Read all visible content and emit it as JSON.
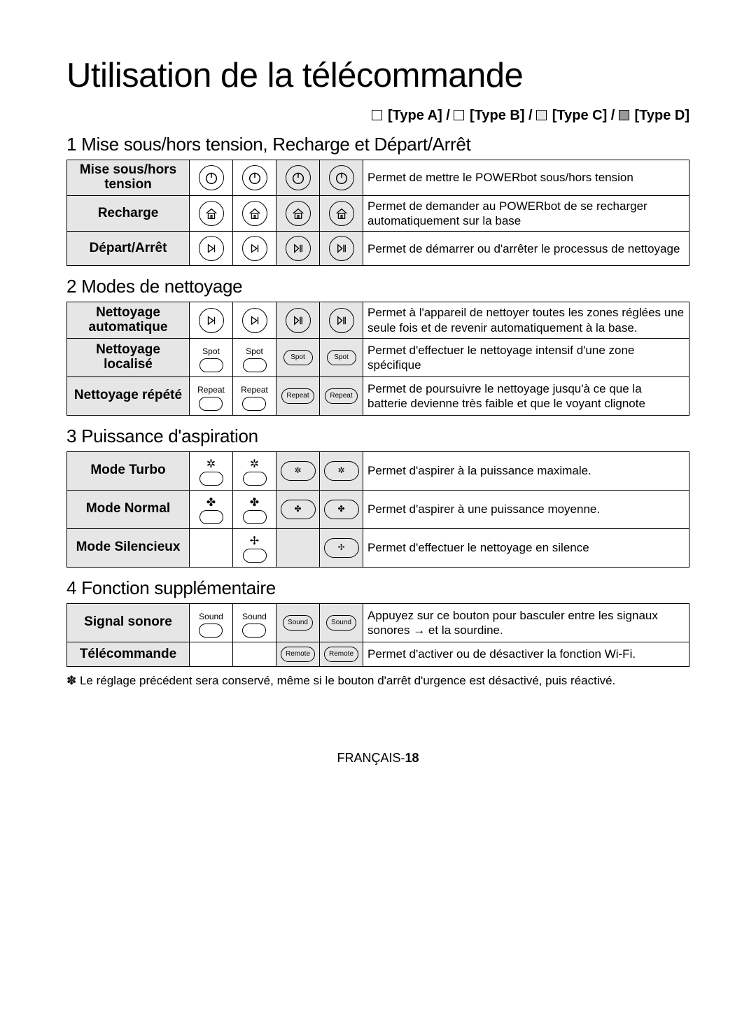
{
  "title": "Utilisation de la télécommande",
  "types": [
    "[Type A]",
    "[Type B]",
    "[Type C]",
    "[Type D]"
  ],
  "type_shades": [
    "white",
    "white",
    "light",
    "dark"
  ],
  "sections": [
    {
      "heading": "1 Mise sous/hors tension, Recharge et Départ/Arrêt",
      "rows": [
        {
          "label": "Mise sous/hors tension",
          "icons": [
            "power",
            "power",
            "power",
            "power"
          ],
          "shade": [
            false,
            false,
            true,
            true
          ],
          "desc": "Permet de mettre le POWERbot sous/hors tension"
        },
        {
          "label": "Recharge",
          "icons": [
            "home",
            "home",
            "home",
            "home"
          ],
          "shade": [
            false,
            false,
            true,
            true
          ],
          "desc": "Permet de demander au POWERbot de se recharger automatiquement sur la base"
        },
        {
          "label": "Départ/Arrêt",
          "icons": [
            "play",
            "play",
            "skip",
            "skip"
          ],
          "shade": [
            false,
            false,
            true,
            true
          ],
          "desc": "Permet de démarrer ou d'arrêter le processus de nettoyage"
        }
      ]
    },
    {
      "heading": "2 Modes de nettoyage",
      "rows": [
        {
          "label": "Nettoyage automatique",
          "icons": [
            "play",
            "play",
            "skip",
            "skip"
          ],
          "shade": [
            false,
            false,
            true,
            true
          ],
          "desc": "Permet à l'appareil de nettoyer toutes les zones réglées une seule fois et de revenir automatiquement à la base."
        },
        {
          "label": "Nettoyage localisé",
          "icons": [
            "stack:Spot",
            "stack:Spot",
            "oval:Spot",
            "oval:Spot"
          ],
          "shade": [
            false,
            false,
            true,
            true
          ],
          "desc": "Permet d'effectuer le nettoyage intensif d'une zone spécifique"
        },
        {
          "label": "Nettoyage répété",
          "icons": [
            "stack:Repeat",
            "stack:Repeat",
            "oval:Repeat",
            "oval:Repeat"
          ],
          "shade": [
            false,
            false,
            true,
            true
          ],
          "desc": "Permet de poursuivre le nettoyage jusqu'à ce que la batterie devienne très faible et que le voyant clignote"
        }
      ]
    },
    {
      "heading": "3 Puissance d'aspiration",
      "rows": [
        {
          "label": "Mode Turbo",
          "icons": [
            "fanstack:turbo",
            "fanstack:turbo",
            "fanoval:turbo",
            "fanoval:turbo"
          ],
          "shade": [
            false,
            false,
            true,
            true
          ],
          "desc": "Permet d'aspirer à la puissance maximale."
        },
        {
          "label": "Mode Normal",
          "icons": [
            "fanstack:normal",
            "fanstack:normal",
            "fanoval:normal",
            "fanoval:normal"
          ],
          "shade": [
            false,
            false,
            true,
            true
          ],
          "desc": "Permet d'aspirer à une puissance moyenne."
        },
        {
          "label": "Mode Silencieux",
          "icons": [
            "",
            "fanstack:quiet",
            "",
            "fanoval:quiet"
          ],
          "shade": [
            false,
            false,
            true,
            true
          ],
          "desc": "Permet d'effectuer le nettoyage en silence"
        }
      ]
    },
    {
      "heading": "4 Fonction supplémentaire",
      "rows": [
        {
          "label": "Signal sonore",
          "icons": [
            "stack:Sound",
            "stack:Sound",
            "oval:Sound",
            "oval:Sound"
          ],
          "shade": [
            false,
            false,
            true,
            true
          ],
          "desc": "Appuyez sur ce bouton pour basculer entre les signaux sonores → et la sourdine."
        },
        {
          "label": "Télécommande",
          "icons": [
            "",
            "",
            "oval:Remote",
            "oval:Remote"
          ],
          "shade": [
            false,
            false,
            true,
            true
          ],
          "desc": "Permet d'activer ou de désactiver la fonction Wi-Fi."
        }
      ]
    }
  ],
  "footnote": "✽ Le réglage précédent sera conservé, même si le bouton d'arrêt d'urgence est désactivé, puis réactivé.",
  "footer_prefix": "FRANÇAIS-",
  "footer_page": "18"
}
